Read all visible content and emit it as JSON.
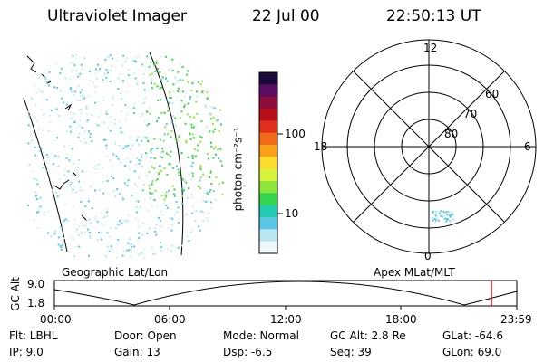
{
  "header": {
    "title": "Ultraviolet Imager",
    "date": "22 Jul 00",
    "time": "22:50:13 UT"
  },
  "colorbar": {
    "label": "photon cm⁻²s⁻¹",
    "ticks": [
      "100",
      "10"
    ],
    "colors": [
      "#1a0b3a",
      "#5a0d63",
      "#8e0d3a",
      "#b60f17",
      "#e0301b",
      "#f06a18",
      "#f8a018",
      "#fadc2a",
      "#d9f23a",
      "#8de639",
      "#35d64e",
      "#22ccb0",
      "#58c8e6",
      "#b8e6f2",
      "#eef8fb"
    ]
  },
  "polar": {
    "mlt_labels": [
      "12",
      "18",
      "6",
      "0"
    ],
    "lat_labels": [
      "60",
      "70",
      "80"
    ]
  },
  "left_panel": {
    "caption": "Geographic Lat/Lon"
  },
  "right_panel": {
    "caption": "Apex MLat/MLT"
  },
  "orbit": {
    "axis_label": "GC Alt",
    "y_ticks": [
      "9.0",
      "1.8"
    ],
    "x_ticks": [
      "00:00",
      "06:00",
      "12:00",
      "18:00",
      "23:59"
    ],
    "marker_color": "#d01010"
  },
  "footer": {
    "flt": "Flt: LBHL",
    "ip": "IP:  9.0",
    "door": "Door: Open",
    "gain": "Gain: 13",
    "mode": "Mode: Normal",
    "dsp": "Dsp:    -6.5",
    "gcalt": "GC Alt: 2.8 Re",
    "seq": "Seq: 39",
    "glat": "GLat:  -64.6",
    "glon": "GLon:  69.0"
  }
}
